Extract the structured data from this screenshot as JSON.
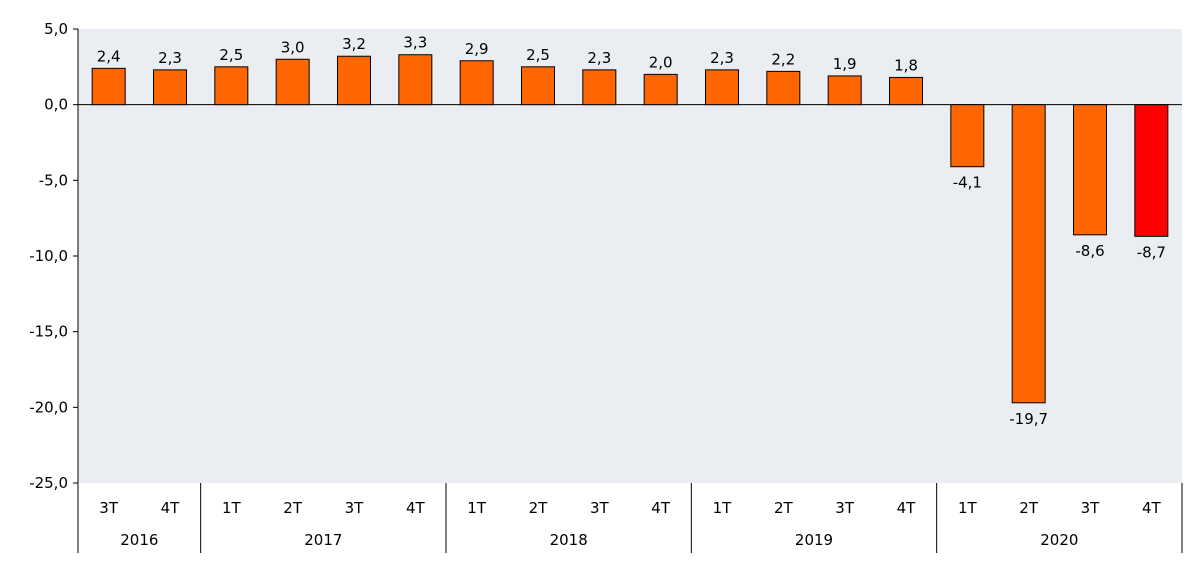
{
  "chart_data": {
    "type": "bar",
    "title": "",
    "xlabel": "",
    "ylabel": "",
    "ylim": [
      -25,
      5
    ],
    "yticks": [
      5,
      0,
      -5,
      -10,
      -15,
      -20,
      -25
    ],
    "ytick_labels": [
      "5,0",
      "0,0",
      "-5,0",
      "-10,0",
      "-15,0",
      "-20,0",
      "-25,0"
    ],
    "categories": [
      "3T",
      "4T",
      "1T",
      "2T",
      "3T",
      "4T",
      "1T",
      "2T",
      "3T",
      "4T",
      "1T",
      "2T",
      "3T",
      "4T",
      "1T",
      "2T",
      "3T",
      "4T"
    ],
    "years": [
      {
        "label": "2016",
        "count": 2
      },
      {
        "label": "2017",
        "count": 4
      },
      {
        "label": "2018",
        "count": 4
      },
      {
        "label": "2019",
        "count": 4
      },
      {
        "label": "2020",
        "count": 4
      }
    ],
    "values": [
      2.4,
      2.3,
      2.5,
      3.0,
      3.2,
      3.3,
      2.9,
      2.5,
      2.3,
      2.0,
      2.3,
      2.2,
      1.9,
      1.8,
      -4.1,
      -19.7,
      -8.6,
      -8.7
    ],
    "value_labels": [
      "2,4",
      "2,3",
      "2,5",
      "3,0",
      "3,2",
      "3,3",
      "2,9",
      "2,5",
      "2,3",
      "2,0",
      "2,3",
      "2,2",
      "1,9",
      "1,8",
      "-4,1",
      "-19,7",
      "-8,6",
      "-8,7"
    ],
    "bar_colors": [
      "#FF6600",
      "#FF6600",
      "#FF6600",
      "#FF6600",
      "#FF6600",
      "#FF6600",
      "#FF6600",
      "#FF6600",
      "#FF6600",
      "#FF6600",
      "#FF6600",
      "#FF6600",
      "#FF6600",
      "#FF6600",
      "#FF6600",
      "#FF6600",
      "#FF6600",
      "#FF0000"
    ],
    "plot_background": "#EAEDF1",
    "grid": false,
    "legend": "none"
  }
}
